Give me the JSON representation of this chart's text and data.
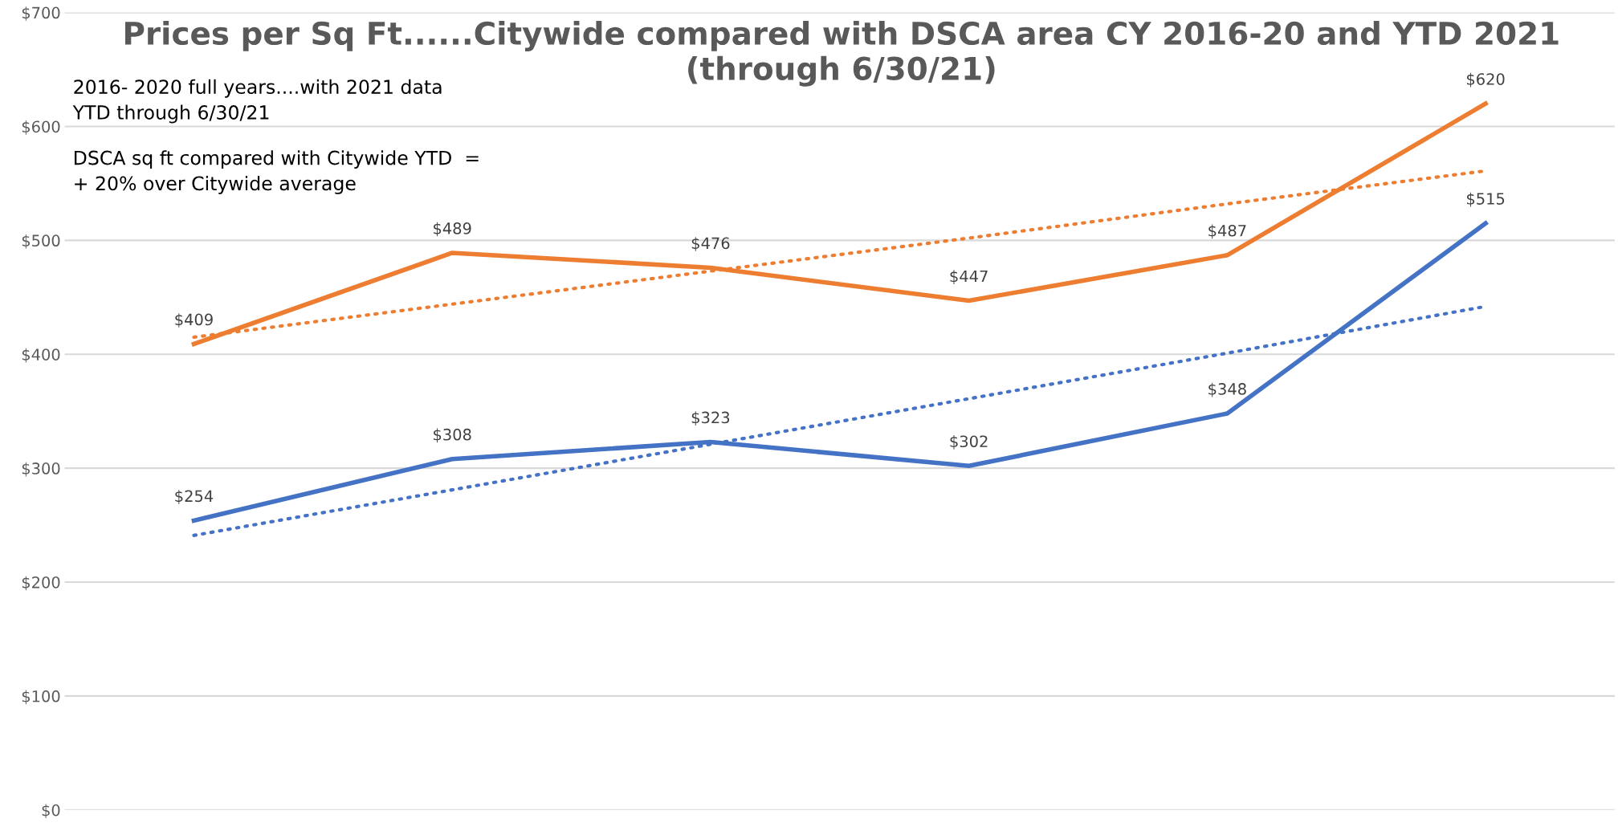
{
  "chart_data": {
    "type": "line",
    "title": "Prices per Sq Ft......Citywide compared with DSCA area CY 2016-20 and YTD 2021 (through 6/30/21)",
    "categories": [
      null,
      null,
      null,
      null,
      null,
      null
    ],
    "series": [
      {
        "color": "#ed7d31",
        "values": [
          409,
          489,
          476,
          447,
          487,
          620
        ],
        "value_labels": [
          "$409",
          "$489",
          "$476",
          "$447",
          "$487",
          "$620"
        ],
        "line_style": "solid"
      },
      {
        "color": "#4472c4",
        "values": [
          254,
          308,
          323,
          302,
          348,
          515
        ],
        "value_labels": [
          "$254",
          "$308",
          "$323",
          "$302",
          "$348",
          "$515"
        ],
        "line_style": "solid"
      },
      {
        "color": "#ed7d31",
        "values": [
          415,
          444,
          473,
          502,
          532,
          561
        ],
        "line_style": "dotted"
      },
      {
        "color": "#4472c4",
        "values": [
          241,
          281,
          321,
          361,
          401,
          442
        ],
        "line_style": "dotted"
      }
    ],
    "ylim": [
      0,
      700
    ],
    "yticks": [
      {
        "value": 0,
        "label": "$0"
      },
      {
        "value": 100,
        "label": "$100"
      },
      {
        "value": 200,
        "label": "$200"
      },
      {
        "value": 300,
        "label": "$300"
      },
      {
        "value": 400,
        "label": "$400"
      },
      {
        "value": 500,
        "label": "$500"
      },
      {
        "value": 600,
        "label": "$600"
      },
      {
        "value": 700,
        "label": "$700"
      }
    ],
    "grid": "y",
    "marker": "none",
    "annotations": [
      "2016- 2020 full years....with 2021 data\nYTD through 6/30/21",
      "DSCA sq ft compared with Citywide YTD  =\n+ 20% over Citywide average"
    ]
  }
}
